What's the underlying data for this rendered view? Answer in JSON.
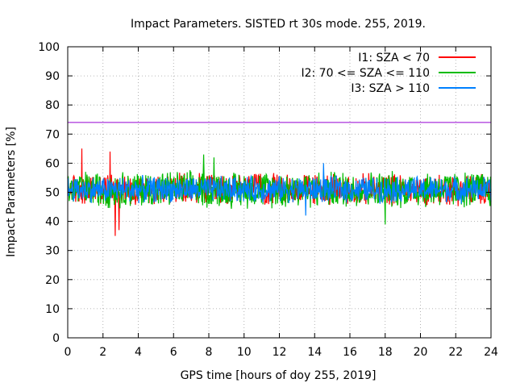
{
  "chart_data": {
    "type": "line",
    "title": "Impact Parameters. SISTED rt 30s mode. 255, 2019.",
    "xlabel": "GPS time [hours of doy 255, 2019]",
    "ylabel": "Impact Parameters [%]",
    "xlim": [
      0,
      24
    ],
    "ylim": [
      0,
      100
    ],
    "x_ticks": [
      0,
      2,
      4,
      6,
      8,
      10,
      12,
      14,
      16,
      18,
      20,
      22,
      24
    ],
    "y_ticks": [
      0,
      10,
      20,
      30,
      40,
      50,
      60,
      70,
      80,
      90,
      100
    ],
    "grid": true,
    "legend_position": "top-right",
    "threshold_line": {
      "y": 74,
      "color": "#9400d3"
    },
    "series": [
      {
        "name": "I1: SZA < 70",
        "color": "#ff0000",
        "mean": 51,
        "typical_range": [
          45,
          57
        ],
        "extremes": [
          {
            "x": 0.8,
            "y": 65
          },
          {
            "x": 2.7,
            "y": 35
          },
          {
            "x": 2.4,
            "y": 64
          },
          {
            "x": 2.9,
            "y": 37
          }
        ]
      },
      {
        "name": "I2: 70 <= SZA <= 110",
        "color": "#00bb00",
        "mean": 51,
        "typical_range": [
          44,
          58
        ],
        "extremes": [
          {
            "x": 7.7,
            "y": 63
          },
          {
            "x": 18.0,
            "y": 39
          },
          {
            "x": 8.3,
            "y": 62
          }
        ]
      },
      {
        "name": "I3: SZA > 110",
        "color": "#0080ff",
        "mean": 51,
        "typical_range": [
          46,
          56
        ],
        "extremes": [
          {
            "x": 14.5,
            "y": 60
          },
          {
            "x": 13.5,
            "y": 42
          }
        ]
      }
    ]
  }
}
